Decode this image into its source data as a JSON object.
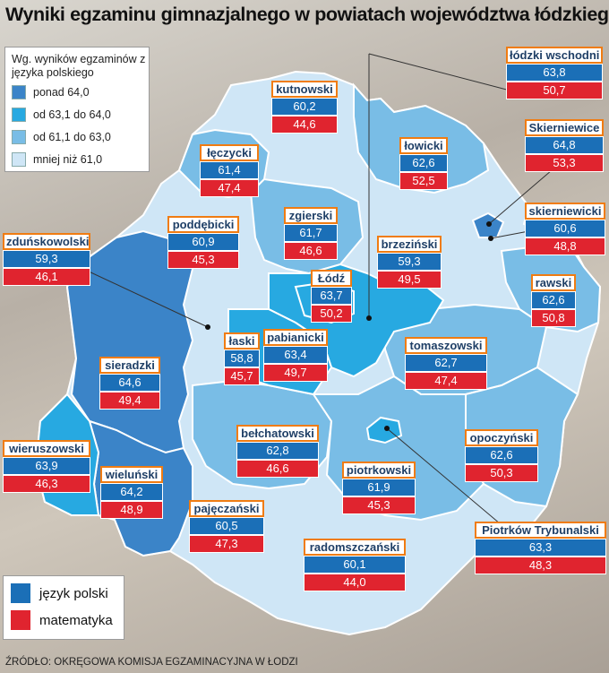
{
  "title": "Wyniki egzaminu gimnazjalnego w powiatach województwa łódzkiego",
  "legend_categories": {
    "heading": "Wg. wyników egzaminów z języka polskiego",
    "items": [
      {
        "label": "ponad 64,0",
        "color": "#3b84c8"
      },
      {
        "label": "od 63,1 do 64,0",
        "color": "#27a9e1"
      },
      {
        "label": "od 61,1 do 63,0",
        "color": "#79bde6"
      },
      {
        "label": "mniej niż 61,0",
        "color": "#cfe6f6"
      }
    ]
  },
  "legend_subjects": {
    "items": [
      {
        "label": "język polski",
        "color": "#1b6fb7"
      },
      {
        "label": "matematyka",
        "color": "#e0242f"
      }
    ]
  },
  "districts": [
    {
      "name": "łódzki wschodni",
      "polski": "63,8",
      "matematyka": "50,7"
    },
    {
      "name": "kutnowski",
      "polski": "60,2",
      "matematyka": "44,6"
    },
    {
      "name": "Skierniewice",
      "polski": "64,8",
      "matematyka": "53,3"
    },
    {
      "name": "łęczycki",
      "polski": "61,4",
      "matematyka": "47,4"
    },
    {
      "name": "łowicki",
      "polski": "62,6",
      "matematyka": "52,5"
    },
    {
      "name": "skierniewicki",
      "polski": "60,6",
      "matematyka": "48,8"
    },
    {
      "name": "zgierski",
      "polski": "61,7",
      "matematyka": "46,6"
    },
    {
      "name": "poddębicki",
      "polski": "60,9",
      "matematyka": "45,3"
    },
    {
      "name": "zduńskowolski",
      "polski": "59,3",
      "matematyka": "46,1"
    },
    {
      "name": "brzeziński",
      "polski": "59,3",
      "matematyka": "49,5"
    },
    {
      "name": "Łódź",
      "polski": "63,7",
      "matematyka": "50,2"
    },
    {
      "name": "rawski",
      "polski": "62,6",
      "matematyka": "50,8"
    },
    {
      "name": "łaski",
      "polski": "58,8",
      "matematyka": "45,7"
    },
    {
      "name": "pabianicki",
      "polski": "63,4",
      "matematyka": "49,7"
    },
    {
      "name": "tomaszowski",
      "polski": "62,7",
      "matematyka": "47,4"
    },
    {
      "name": "sieradzki",
      "polski": "64,6",
      "matematyka": "49,4"
    },
    {
      "name": "bełchatowski",
      "polski": "62,8",
      "matematyka": "46,6"
    },
    {
      "name": "opoczyński",
      "polski": "62,6",
      "matematyka": "50,3"
    },
    {
      "name": "wieruszowski",
      "polski": "63,9",
      "matematyka": "46,3"
    },
    {
      "name": "wieluński",
      "polski": "64,2",
      "matematyka": "48,9"
    },
    {
      "name": "piotrkowski",
      "polski": "61,9",
      "matematyka": "45,3"
    },
    {
      "name": "pajęczański",
      "polski": "60,5",
      "matematyka": "47,3"
    },
    {
      "name": "Piotrków Trybunalski",
      "polski": "63,3",
      "matematyka": "48,3"
    },
    {
      "name": "radomszczański",
      "polski": "60,1",
      "matematyka": "44,0"
    }
  ],
  "source": "ŹRÓDŁO: OKRĘGOWA KOMISJA EGZAMINACYJNA W ŁODZI"
}
